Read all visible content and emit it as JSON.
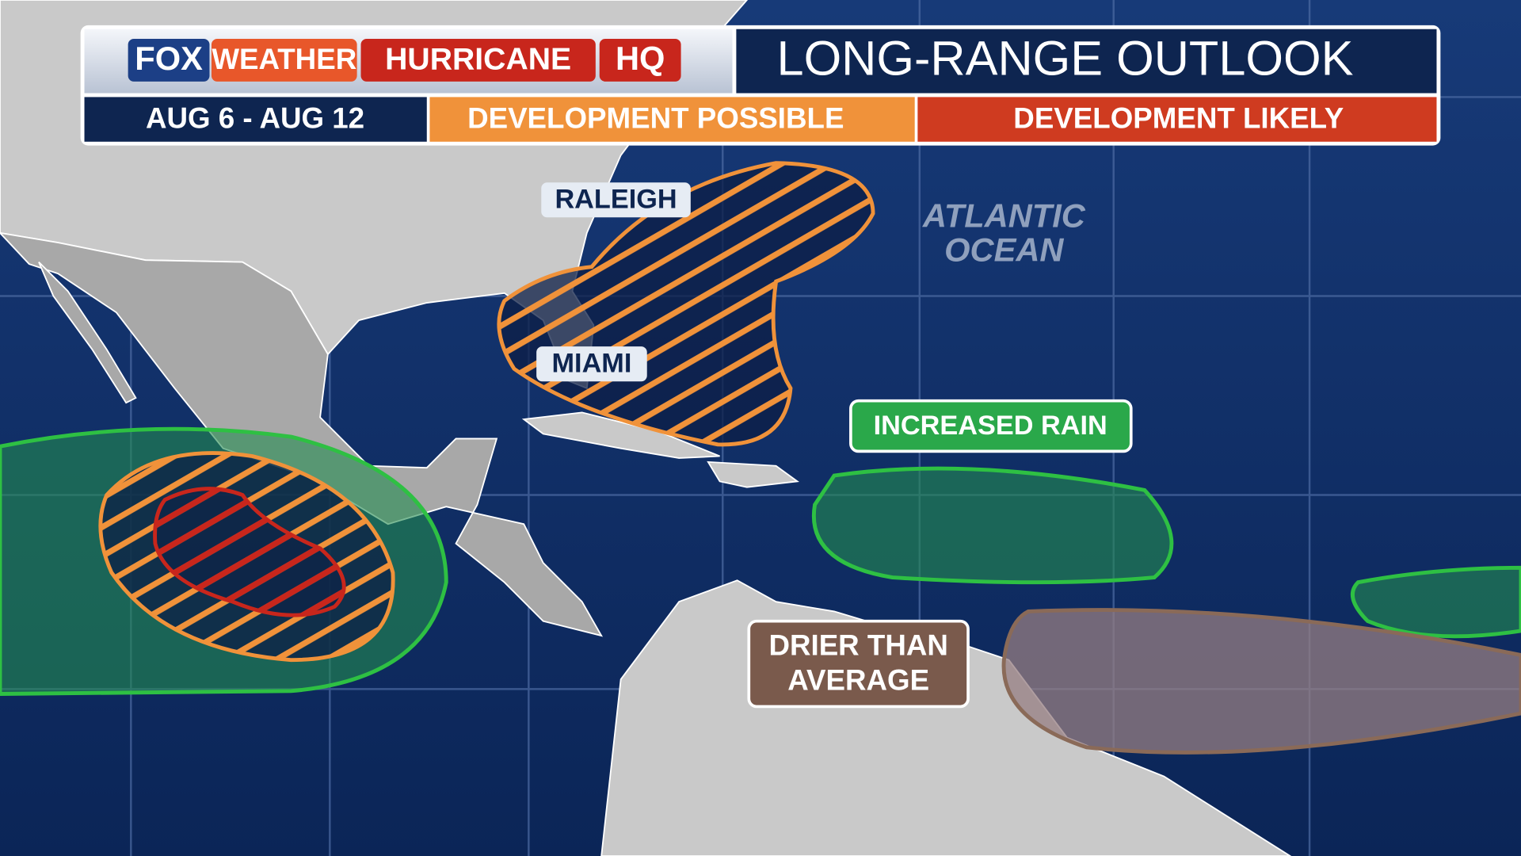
{
  "header": {
    "brand": [
      "FOX",
      "WEATHER",
      "HURRICANE",
      "HQ"
    ],
    "title": "LONG-RANGE OUTLOOK",
    "dates": "AUG 6 - AUG 12",
    "legend": [
      "DEVELOPMENT POSSIBLE",
      "DEVELOPMENT LIKELY"
    ]
  },
  "map": {
    "cities": [
      "RALEIGH",
      "MIAMI"
    ],
    "ocean": [
      "ATLANTIC",
      "OCEAN"
    ],
    "zones": {
      "rain": "INCREASED RAIN",
      "dry": [
        "DRIER THAN",
        "AVERAGE"
      ]
    }
  }
}
